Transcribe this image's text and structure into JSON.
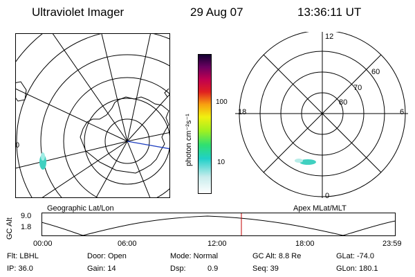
{
  "header": {
    "title": "Ultraviolet Imager",
    "date": "29 Aug 07",
    "time": "13:36:11 UT"
  },
  "colorbar": {
    "unit": "photon cm⁻²s⁻¹",
    "ticks": [
      "100",
      "10"
    ]
  },
  "left_panel": {
    "label": "Geographic Lat/Lon",
    "edge_tick": "0"
  },
  "right_panel": {
    "label": "Apex MLat/MLT",
    "mlt_labels": {
      "top": "12",
      "left": "18",
      "right": "6",
      "bottom": "0"
    },
    "lat_labels": [
      "60",
      "70",
      "80"
    ]
  },
  "altitude_plot": {
    "ylabel": "GC Alt",
    "yticks": [
      "9.0",
      "1.8"
    ],
    "xticks": [
      "00:00",
      "06:00",
      "12:00",
      "18:00",
      "23:59"
    ],
    "marker_time": "13:36"
  },
  "footer": {
    "filter": "Flt: LBHL",
    "door": "Door: Open",
    "mode": "Mode: Normal",
    "gc_alt": "GC Alt: 8.8 Re",
    "glat": "GLat: -74.0",
    "ip": "IP: 36.0",
    "gain": "Gain: 14",
    "dsp_label": "Dsp:",
    "dsp_value": "0.9",
    "seq": "Seq: 39",
    "glon": "GLon: 180.1"
  },
  "colors": {
    "aurora": "#40d0c0",
    "marker": "#c00000",
    "meridian": "#2040c0"
  }
}
